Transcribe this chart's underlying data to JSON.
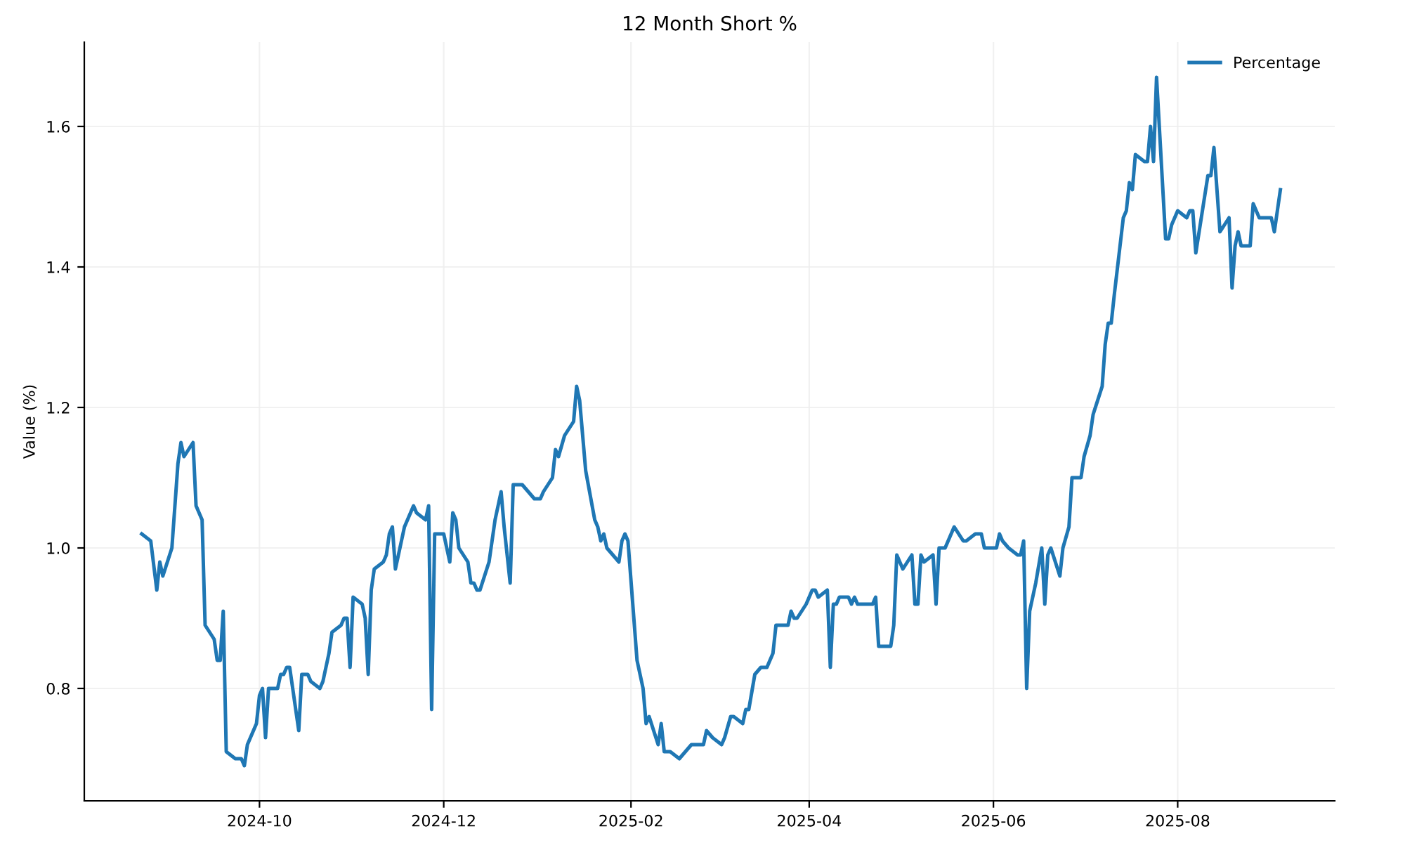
{
  "chart_data": {
    "type": "line",
    "title": "12 Month Short %",
    "ylabel": "Value (%)",
    "xlim": [
      "2024-08-04",
      "2025-09-22"
    ],
    "ylim": [
      0.64,
      1.72
    ],
    "xticks": [
      {
        "value": "2024-10-01",
        "label": "2024-10"
      },
      {
        "value": "2024-12-01",
        "label": "2024-12"
      },
      {
        "value": "2025-02-01",
        "label": "2025-02"
      },
      {
        "value": "2025-04-01",
        "label": "2025-04"
      },
      {
        "value": "2025-06-01",
        "label": "2025-06"
      },
      {
        "value": "2025-08-01",
        "label": "2025-08"
      }
    ],
    "yticks": [
      {
        "value": 0.8,
        "label": "0.8"
      },
      {
        "value": 1,
        "label": "1.0"
      },
      {
        "value": 1.2,
        "label": "1.2"
      },
      {
        "value": 1.4,
        "label": "1.4"
      },
      {
        "value": 1.6,
        "label": "1.6"
      }
    ],
    "grid": true,
    "legend": "top right",
    "marker": "none",
    "line_style": "solid",
    "x": [
      "2024-08-23",
      "2024-08-26",
      "2024-08-28",
      "2024-08-29",
      "2024-08-30",
      "2024-09-02",
      "2024-09-04",
      "2024-09-05",
      "2024-09-06",
      "2024-09-09",
      "2024-09-10",
      "2024-09-12",
      "2024-09-13",
      "2024-09-16",
      "2024-09-17",
      "2024-09-18",
      "2024-09-19",
      "2024-09-20",
      "2024-09-23",
      "2024-09-25",
      "2024-09-26",
      "2024-09-27",
      "2024-09-30",
      "2024-10-01",
      "2024-10-02",
      "2024-10-03",
      "2024-10-04",
      "2024-10-07",
      "2024-10-08",
      "2024-10-09",
      "2024-10-10",
      "2024-10-11",
      "2024-10-14",
      "2024-10-15",
      "2024-10-17",
      "2024-10-18",
      "2024-10-21",
      "2024-10-22",
      "2024-10-24",
      "2024-10-25",
      "2024-10-28",
      "2024-10-29",
      "2024-10-30",
      "2024-10-31",
      "2024-11-01",
      "2024-11-04",
      "2024-11-05",
      "2024-11-06",
      "2024-11-07",
      "2024-11-08",
      "2024-11-11",
      "2024-11-12",
      "2024-11-13",
      "2024-11-14",
      "2024-11-15",
      "2024-11-18",
      "2024-11-20",
      "2024-11-21",
      "2024-11-22",
      "2024-11-25",
      "2024-11-26",
      "2024-11-27",
      "2024-11-28",
      "2024-12-01",
      "2024-12-03",
      "2024-12-04",
      "2024-12-05",
      "2024-12-06",
      "2024-12-09",
      "2024-12-10",
      "2024-12-11",
      "2024-12-12",
      "2024-12-13",
      "2024-12-16",
      "2024-12-17",
      "2024-12-18",
      "2024-12-20",
      "2024-12-21",
      "2024-12-23",
      "2024-12-24",
      "2024-12-27",
      "2024-12-29",
      "2024-12-31",
      "2025-01-02",
      "2025-01-03",
      "2025-01-06",
      "2025-01-07",
      "2025-01-08",
      "2025-01-10",
      "2025-01-13",
      "2025-01-14",
      "2025-01-15",
      "2025-01-17",
      "2025-01-20",
      "2025-01-21",
      "2025-01-22",
      "2025-01-23",
      "2025-01-24",
      "2025-01-28",
      "2025-01-29",
      "2025-01-30",
      "2025-01-31",
      "2025-02-03",
      "2025-02-05",
      "2025-02-06",
      "2025-02-07",
      "2025-02-10",
      "2025-02-11",
      "2025-02-12",
      "2025-02-14",
      "2025-02-17",
      "2025-02-19",
      "2025-02-21",
      "2025-02-25",
      "2025-02-26",
      "2025-02-28",
      "2025-03-03",
      "2025-03-04",
      "2025-03-06",
      "2025-03-07",
      "2025-03-10",
      "2025-03-11",
      "2025-03-12",
      "2025-03-14",
      "2025-03-16",
      "2025-03-18",
      "2025-03-20",
      "2025-03-21",
      "2025-03-25",
      "2025-03-26",
      "2025-03-27",
      "2025-03-28",
      "2025-03-31",
      "2025-04-02",
      "2025-04-03",
      "2025-04-04",
      "2025-04-07",
      "2025-04-08",
      "2025-04-09",
      "2025-04-10",
      "2025-04-11",
      "2025-04-14",
      "2025-04-15",
      "2025-04-16",
      "2025-04-17",
      "2025-04-22",
      "2025-04-23",
      "2025-04-24",
      "2025-04-28",
      "2025-04-29",
      "2025-04-30",
      "2025-05-02",
      "2025-05-05",
      "2025-05-06",
      "2025-05-07",
      "2025-05-08",
      "2025-05-09",
      "2025-05-12",
      "2025-05-13",
      "2025-05-14",
      "2025-05-16",
      "2025-05-19",
      "2025-05-22",
      "2025-05-23",
      "2025-05-26",
      "2025-05-28",
      "2025-05-29",
      "2025-06-02",
      "2025-06-03",
      "2025-06-04",
      "2025-06-06",
      "2025-06-09",
      "2025-06-10",
      "2025-06-11",
      "2025-06-12",
      "2025-06-13",
      "2025-06-15",
      "2025-06-17",
      "2025-06-18",
      "2025-06-19",
      "2025-06-20",
      "2025-06-23",
      "2025-06-24",
      "2025-06-26",
      "2025-06-27",
      "2025-06-30",
      "2025-07-01",
      "2025-07-03",
      "2025-07-04",
      "2025-07-07",
      "2025-07-08",
      "2025-07-09",
      "2025-07-10",
      "2025-07-11",
      "2025-07-14",
      "2025-07-15",
      "2025-07-16",
      "2025-07-17",
      "2025-07-18",
      "2025-07-21",
      "2025-07-22",
      "2025-07-23",
      "2025-07-24",
      "2025-07-25",
      "2025-07-28",
      "2025-07-29",
      "2025-07-30",
      "2025-08-01",
      "2025-08-04",
      "2025-08-05",
      "2025-08-06",
      "2025-08-07",
      "2025-08-11",
      "2025-08-12",
      "2025-08-13",
      "2025-08-15",
      "2025-08-18",
      "2025-08-19",
      "2025-08-20",
      "2025-08-21",
      "2025-08-22",
      "2025-08-25",
      "2025-08-26",
      "2025-08-28",
      "2025-09-01",
      "2025-09-02",
      "2025-09-04"
    ],
    "series": [
      {
        "name": "Percentage",
        "color": "#1f77b4",
        "values": [
          1.02,
          1.01,
          0.94,
          0.98,
          0.96,
          1.0,
          1.12,
          1.15,
          1.13,
          1.15,
          1.06,
          1.04,
          0.89,
          0.87,
          0.84,
          0.84,
          0.91,
          0.71,
          0.7,
          0.7,
          0.69,
          0.72,
          0.75,
          0.79,
          0.8,
          0.73,
          0.8,
          0.8,
          0.82,
          0.82,
          0.83,
          0.83,
          0.74,
          0.82,
          0.82,
          0.81,
          0.8,
          0.81,
          0.85,
          0.88,
          0.89,
          0.9,
          0.9,
          0.83,
          0.93,
          0.92,
          0.9,
          0.82,
          0.94,
          0.97,
          0.98,
          0.99,
          1.02,
          1.03,
          0.97,
          1.03,
          1.05,
          1.06,
          1.05,
          1.04,
          1.06,
          0.77,
          1.02,
          1.02,
          0.98,
          1.05,
          1.04,
          1.0,
          0.98,
          0.95,
          0.95,
          0.94,
          0.94,
          0.98,
          1.01,
          1.04,
          1.08,
          1.03,
          0.95,
          1.09,
          1.09,
          1.08,
          1.07,
          1.07,
          1.08,
          1.1,
          1.14,
          1.13,
          1.16,
          1.18,
          1.23,
          1.21,
          1.11,
          1.04,
          1.03,
          1.01,
          1.02,
          1.0,
          0.98,
          1.01,
          1.02,
          1.01,
          0.84,
          0.8,
          0.75,
          0.76,
          0.72,
          0.75,
          0.71,
          0.71,
          0.7,
          0.71,
          0.72,
          0.72,
          0.74,
          0.73,
          0.72,
          0.73,
          0.76,
          0.76,
          0.75,
          0.77,
          0.77,
          0.82,
          0.83,
          0.83,
          0.85,
          0.89,
          0.89,
          0.91,
          0.9,
          0.9,
          0.92,
          0.94,
          0.94,
          0.93,
          0.94,
          0.83,
          0.92,
          0.92,
          0.93,
          0.93,
          0.92,
          0.93,
          0.92,
          0.92,
          0.93,
          0.86,
          0.86,
          0.89,
          0.99,
          0.97,
          0.99,
          0.92,
          0.92,
          0.99,
          0.98,
          0.99,
          0.92,
          1.0,
          1.0,
          1.03,
          1.01,
          1.01,
          1.02,
          1.02,
          1.0,
          1.0,
          1.02,
          1.01,
          1.0,
          0.99,
          0.99,
          1.01,
          0.8,
          0.91,
          0.95,
          1.0,
          0.92,
          0.99,
          1.0,
          0.96,
          1.0,
          1.03,
          1.1,
          1.1,
          1.13,
          1.16,
          1.19,
          1.23,
          1.29,
          1.32,
          1.32,
          1.36,
          1.47,
          1.48,
          1.52,
          1.51,
          1.56,
          1.55,
          1.55,
          1.6,
          1.55,
          1.67,
          1.44,
          1.44,
          1.46,
          1.48,
          1.47,
          1.48,
          1.48,
          1.42,
          1.53,
          1.53,
          1.57,
          1.45,
          1.47,
          1.37,
          1.43,
          1.45,
          1.43,
          1.43,
          1.49,
          1.47,
          1.47,
          1.45,
          1.51
        ]
      }
    ]
  }
}
